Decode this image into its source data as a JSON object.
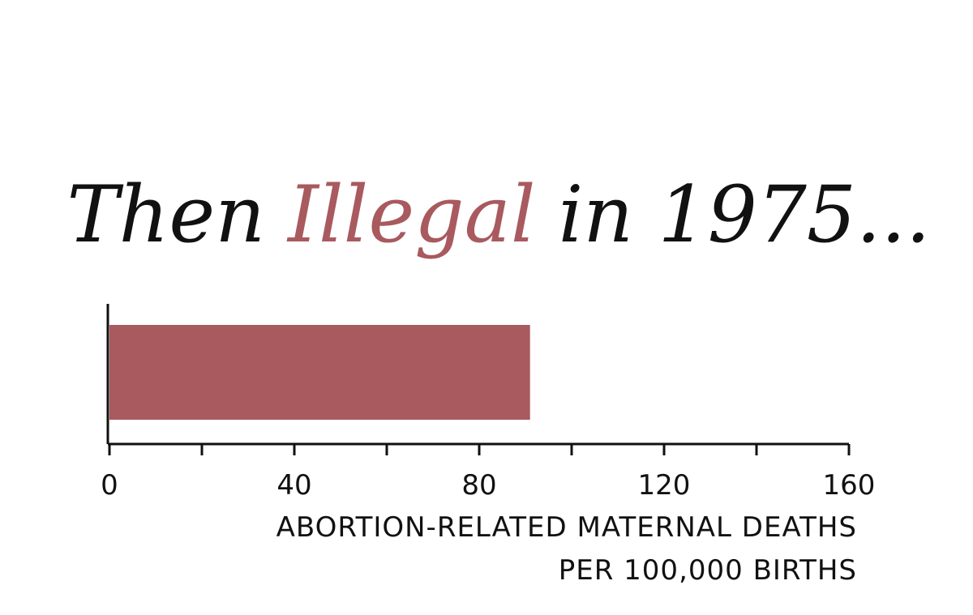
{
  "chart_data": {
    "type": "bar",
    "orientation": "horizontal",
    "title": [
      "Then",
      "Illegal",
      "in 1975..."
    ],
    "title_colors": [
      "#111111",
      "#a85a5f",
      "#111111"
    ],
    "values": [
      91
    ],
    "color": "#a85a5f",
    "xlim": [
      0,
      160
    ],
    "xticks": [
      0,
      40,
      80,
      120,
      160
    ],
    "xminorticks": [
      20,
      60,
      100,
      140
    ],
    "xlabel": [
      "ABORTION-RELATED MATERNAL DEATHS",
      "PER 100,000 BIRTHS"
    ]
  }
}
